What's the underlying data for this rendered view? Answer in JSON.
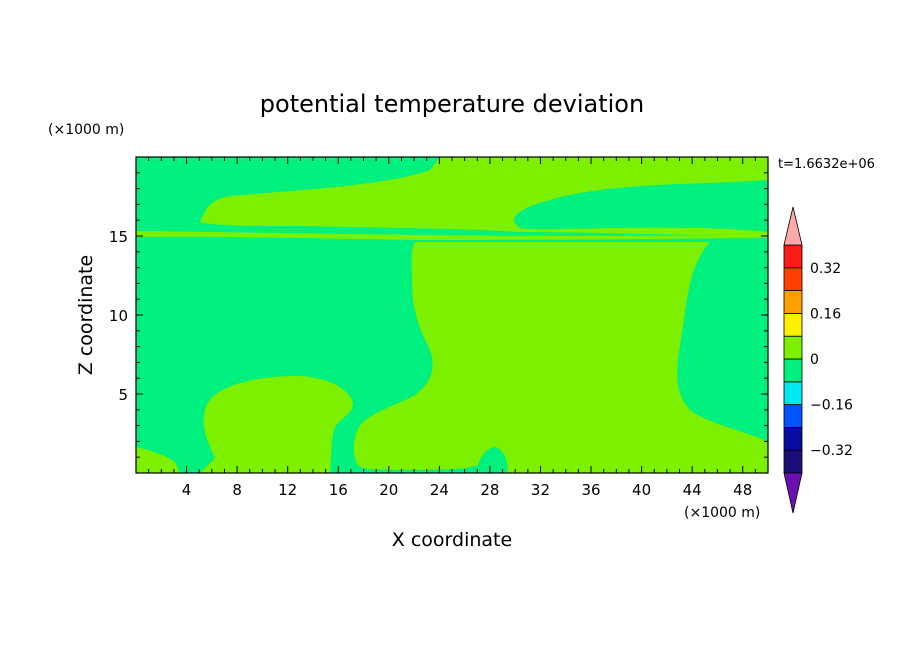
{
  "chart_data": {
    "type": "heatmap",
    "title": "potential temperature deviation",
    "time_label": "t=1.6632e+06",
    "xlabel": "X coordinate",
    "ylabel": "Z coordinate",
    "x_unit": "(×1000 m)",
    "y_unit": "(×1000 m)",
    "xlim": [
      0,
      50
    ],
    "ylim": [
      0,
      20
    ],
    "x_ticks": [
      4,
      8,
      12,
      16,
      20,
      24,
      28,
      32,
      36,
      40,
      44,
      48
    ],
    "y_ticks": [
      5,
      10,
      15
    ],
    "colorbar": {
      "tick_labels": [
        "0.32",
        "0.16",
        "0",
        "-0.16",
        "-0.32"
      ],
      "tick_values": [
        0.32,
        0.16,
        0,
        -0.16,
        -0.32
      ],
      "levels": [
        -0.4,
        -0.32,
        -0.24,
        -0.16,
        -0.08,
        0,
        0.08,
        0.16,
        0.24,
        0.32,
        0.4
      ],
      "colors": [
        "#1a0f78",
        "#0a0aa5",
        "#0055ff",
        "#00e8f2",
        "#00f080",
        "#7df000",
        "#fff000",
        "#ffa000",
        "#ff4000",
        "#ff1a1a"
      ],
      "under_color": "#6a0fb0",
      "over_color": "#ffaaaa",
      "extend": "both"
    },
    "regions": [
      {
        "level_range": [
          -0.08,
          0
        ],
        "color": "#00f080",
        "description": "background"
      },
      {
        "level_range": [
          0,
          0.08
        ],
        "color": "#7df000"
      }
    ]
  }
}
